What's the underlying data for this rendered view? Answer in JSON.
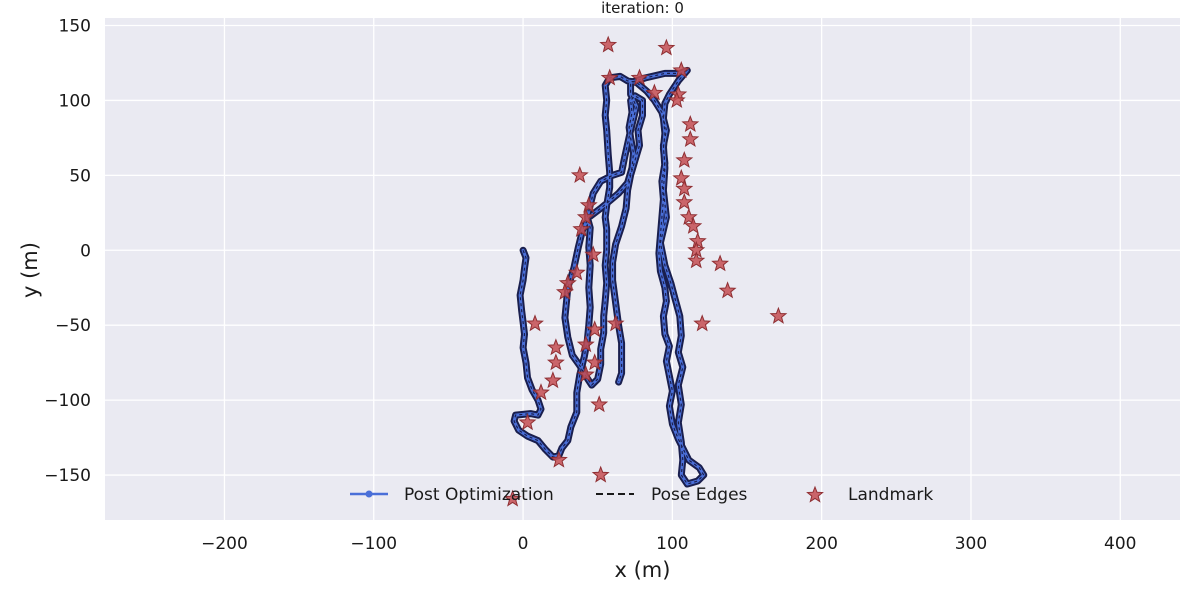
{
  "chart_data": {
    "type": "scatter",
    "title": "iteration: 0",
    "xlabel": "x (m)",
    "ylabel": "y (m)",
    "xlim": [
      -280,
      440
    ],
    "ylim": [
      -180,
      155
    ],
    "xticks": [
      -200,
      -100,
      0,
      100,
      200,
      300,
      400
    ],
    "yticks": [
      -150,
      -100,
      -50,
      0,
      50,
      100,
      150
    ],
    "grid": true,
    "legend_placement": "bottom-center",
    "colors": {
      "background": "#eaeaf2",
      "grid": "#ffffff",
      "trajectory_outer": "#1a1f4e",
      "trajectory_inner": "#4a6fd8",
      "landmark": "#c44e52"
    },
    "legend": [
      {
        "label": "Post Optimization",
        "marker": "line-dot",
        "color": "#4a6fd8"
      },
      {
        "label": "Pose Edges",
        "marker": "dashed",
        "color": "#1a1a1a"
      },
      {
        "label": "Landmark",
        "marker": "star",
        "color": "#c44e52"
      }
    ],
    "series": [
      {
        "name": "Post Optimization",
        "kind": "line",
        "points": [
          [
            0,
            0
          ],
          [
            2,
            -5
          ],
          [
            1,
            -12
          ],
          [
            0,
            -20
          ],
          [
            -2,
            -30
          ],
          [
            -1,
            -40
          ],
          [
            0,
            -48
          ],
          [
            1,
            -56
          ],
          [
            0,
            -65
          ],
          [
            2,
            -75
          ],
          [
            3,
            -85
          ],
          [
            6,
            -93
          ],
          [
            10,
            -100
          ],
          [
            12,
            -106
          ],
          [
            10,
            -110
          ],
          [
            5,
            -109
          ],
          [
            -5,
            -110
          ],
          [
            -6,
            -114
          ],
          [
            -3,
            -120
          ],
          [
            3,
            -124
          ],
          [
            10,
            -127
          ],
          [
            15,
            -133
          ],
          [
            20,
            -138
          ],
          [
            24,
            -137
          ],
          [
            26,
            -132
          ],
          [
            30,
            -127
          ],
          [
            32,
            -118
          ],
          [
            36,
            -108
          ],
          [
            36,
            -95
          ],
          [
            38,
            -83
          ],
          [
            41,
            -71
          ],
          [
            43,
            -60
          ],
          [
            44,
            -50
          ],
          [
            45,
            -38
          ],
          [
            44,
            -25
          ],
          [
            45,
            -10
          ],
          [
            44,
            2
          ],
          [
            45,
            15
          ],
          [
            43,
            22
          ],
          [
            45,
            30
          ],
          [
            47,
            38
          ],
          [
            52,
            46
          ],
          [
            60,
            50
          ],
          [
            66,
            52
          ],
          [
            68,
            62
          ],
          [
            72,
            80
          ],
          [
            76,
            96
          ],
          [
            72,
            104
          ],
          [
            72,
            112
          ],
          [
            82,
            115
          ],
          [
            95,
            118
          ],
          [
            105,
            118
          ],
          [
            110,
            120
          ],
          [
            104,
            113
          ],
          [
            98,
            104
          ],
          [
            95,
            98
          ],
          [
            94,
            88
          ],
          [
            95,
            78
          ],
          [
            94,
            68
          ],
          [
            95,
            58
          ],
          [
            93,
            46
          ],
          [
            94,
            34
          ],
          [
            93,
            22
          ],
          [
            92,
            10
          ],
          [
            91,
            -2
          ],
          [
            92,
            -14
          ],
          [
            95,
            -25
          ],
          [
            96,
            -34
          ],
          [
            94,
            -44
          ],
          [
            95,
            -56
          ],
          [
            98,
            -64
          ],
          [
            96,
            -74
          ],
          [
            98,
            -84
          ],
          [
            100,
            -94
          ],
          [
            98,
            -104
          ],
          [
            100,
            -116
          ],
          [
            104,
            -126
          ],
          [
            108,
            -134
          ],
          [
            111,
            -140
          ],
          [
            118,
            -145
          ],
          [
            121,
            -150
          ],
          [
            117,
            -154
          ],
          [
            110,
            -156
          ],
          [
            106,
            -150
          ],
          [
            107,
            -140
          ],
          [
            106,
            -128
          ],
          [
            104,
            -115
          ],
          [
            106,
            -103
          ],
          [
            104,
            -90
          ],
          [
            107,
            -78
          ],
          [
            104,
            -68
          ],
          [
            106,
            -57
          ],
          [
            105,
            -44
          ],
          [
            102,
            -33
          ],
          [
            99,
            -22
          ],
          [
            95,
            -10
          ],
          [
            92,
            5
          ],
          [
            96,
            22
          ],
          [
            94,
            40
          ],
          [
            95,
            55
          ],
          [
            94,
            70
          ],
          [
            96,
            80
          ],
          [
            93,
            92
          ],
          [
            88,
            100
          ],
          [
            83,
            106
          ],
          [
            76,
            112
          ],
          [
            70,
            113
          ],
          [
            65,
            116
          ],
          [
            58,
            115
          ],
          [
            55,
            110
          ],
          [
            56,
            100
          ],
          [
            55,
            90
          ],
          [
            56,
            80
          ],
          [
            57,
            64
          ],
          [
            58,
            52
          ],
          [
            58,
            42
          ],
          [
            56,
            30
          ],
          [
            55,
            22
          ],
          [
            56,
            14
          ],
          [
            56,
            0
          ],
          [
            55,
            -10
          ],
          [
            56,
            -22
          ],
          [
            55,
            -34
          ],
          [
            54,
            -44
          ],
          [
            54,
            -55
          ],
          [
            52,
            -66
          ],
          [
            52,
            -76
          ],
          [
            50,
            -86
          ],
          [
            46,
            -90
          ],
          [
            42,
            -84
          ],
          [
            38,
            -77
          ],
          [
            33,
            -70
          ],
          [
            30,
            -58
          ],
          [
            28,
            -45
          ],
          [
            29,
            -35
          ],
          [
            30,
            -25
          ],
          [
            34,
            -12
          ],
          [
            37,
            2
          ],
          [
            40,
            14
          ],
          [
            44,
            22
          ],
          [
            52,
            28
          ],
          [
            58,
            33
          ],
          [
            64,
            38
          ],
          [
            70,
            45
          ],
          [
            73,
            55
          ],
          [
            74,
            65
          ],
          [
            72,
            75
          ],
          [
            71,
            82
          ],
          [
            73,
            92
          ],
          [
            72,
            100
          ],
          [
            75,
            103
          ],
          [
            80,
            100
          ],
          [
            80,
            90
          ],
          [
            77,
            80
          ],
          [
            78,
            70
          ],
          [
            75,
            60
          ],
          [
            72,
            50
          ],
          [
            70,
            40
          ],
          [
            69,
            28
          ],
          [
            66,
            16
          ],
          [
            62,
            4
          ],
          [
            60,
            -8
          ],
          [
            60,
            -20
          ],
          [
            62,
            -35
          ],
          [
            64,
            -50
          ],
          [
            66,
            -62
          ],
          [
            66,
            -72
          ],
          [
            66,
            -82
          ],
          [
            64,
            -88
          ]
        ]
      },
      {
        "name": "Landmark",
        "kind": "scatter",
        "points": [
          [
            57,
            137
          ],
          [
            96,
            135
          ],
          [
            58,
            115
          ],
          [
            78,
            115
          ],
          [
            106,
            120
          ],
          [
            88,
            105
          ],
          [
            104,
            104
          ],
          [
            103,
            100
          ],
          [
            112,
            84
          ],
          [
            112,
            74
          ],
          [
            108,
            60
          ],
          [
            106,
            48
          ],
          [
            108,
            41
          ],
          [
            108,
            32
          ],
          [
            111,
            22
          ],
          [
            114,
            16
          ],
          [
            117,
            6
          ],
          [
            116,
            0
          ],
          [
            116,
            -7
          ],
          [
            132,
            -9
          ],
          [
            137,
            -27
          ],
          [
            171,
            -44
          ],
          [
            120,
            -49
          ],
          [
            38,
            50
          ],
          [
            44,
            30
          ],
          [
            42,
            22
          ],
          [
            39,
            14
          ],
          [
            47,
            -3
          ],
          [
            36,
            -15
          ],
          [
            30,
            -22
          ],
          [
            28,
            -28
          ],
          [
            8,
            -49
          ],
          [
            48,
            -53
          ],
          [
            62,
            -49
          ],
          [
            22,
            -65
          ],
          [
            42,
            -63
          ],
          [
            22,
            -75
          ],
          [
            48,
            -75
          ],
          [
            42,
            -83
          ],
          [
            20,
            -87
          ],
          [
            12,
            -95
          ],
          [
            51,
            -103
          ],
          [
            3,
            -115
          ],
          [
            24,
            -140
          ],
          [
            52,
            -150
          ],
          [
            -7,
            -166
          ]
        ]
      }
    ]
  }
}
